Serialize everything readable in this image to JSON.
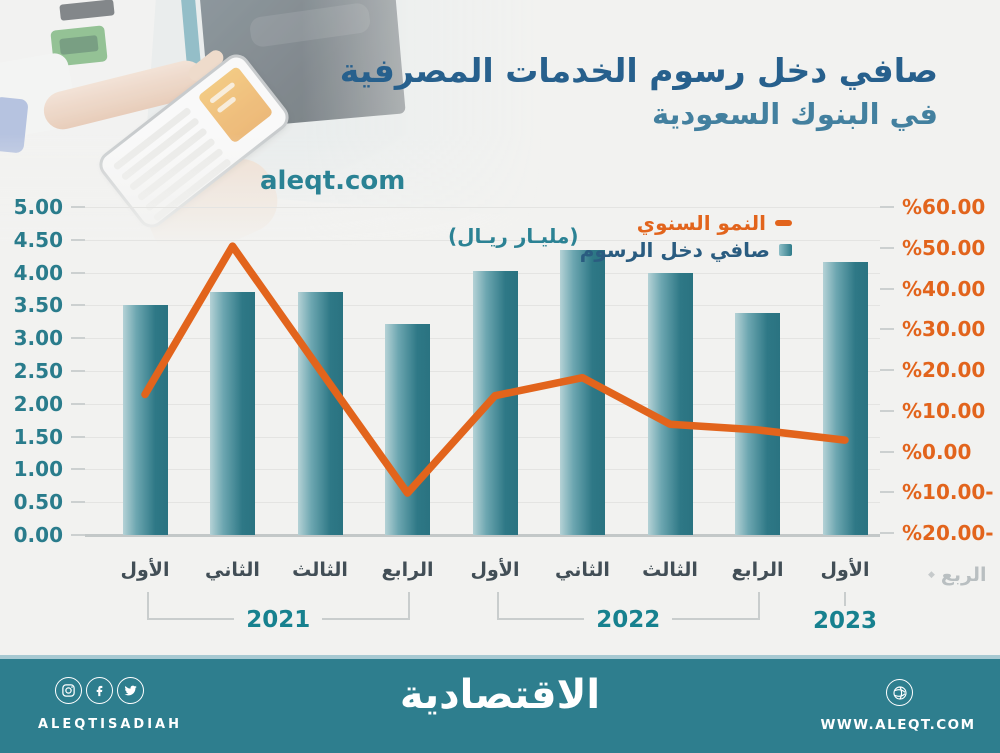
{
  "header": {
    "title_line1": "صافي دخل رسوم الخدمات المصرفية",
    "title_line2": "في البنوك السعودية",
    "website": "aleqt.com"
  },
  "chart_data": {
    "type": "bar",
    "title": "صافي دخل رسوم الخدمات المصرفية في البنوك السعودية",
    "unit_label": "(مليـار ريـال)",
    "x_axis_title": "الربع",
    "grid": true,
    "legend_position": "top-right",
    "categories": [
      "الأول",
      "الثاني",
      "الثالث",
      "الرابع",
      "الأول",
      "الثاني",
      "الثالث",
      "الرابع",
      "الأول"
    ],
    "year_groups": [
      {
        "label": "2021",
        "from": 0,
        "to": 3
      },
      {
        "label": "2022",
        "from": 4,
        "to": 7
      },
      {
        "label": "2023",
        "from": 8,
        "to": 8
      }
    ],
    "series": [
      {
        "name": "صافي دخل الرسوم",
        "type": "bar",
        "axis": "left",
        "color": "#2f7b89",
        "values": [
          3.5,
          3.7,
          3.7,
          3.22,
          4.02,
          4.35,
          3.99,
          3.38,
          4.16
        ]
      },
      {
        "name": "النمو السنوي",
        "type": "line",
        "axis": "right",
        "color": "#e2641c",
        "values": [
          14.0,
          50.4,
          20.0,
          -10.2,
          13.7,
          18.1,
          6.7,
          5.3,
          2.8
        ]
      }
    ],
    "left_axis": {
      "min": 0,
      "max": 5,
      "labels": [
        "5.00",
        "4.50",
        "4.00",
        "3.50",
        "3.00",
        "2.50",
        "2.00",
        "1.50",
        "1.00",
        "0.50",
        "0.00"
      ]
    },
    "right_axis": {
      "min": -20,
      "max": 60,
      "labels": [
        "%60.00",
        "%50.00",
        "%40.00",
        "%30.00",
        "%20.00",
        "%10.00",
        "%0.00",
        "%10.00-",
        "%20.00-"
      ]
    }
  },
  "legend": [
    {
      "label": "النمو السنوي",
      "type": "line",
      "color": "#e2641c"
    },
    {
      "label": "صافي دخل الرسوم",
      "type": "bar",
      "color": "#2f7b89"
    }
  ],
  "footer": {
    "social_handle": "ALEQTISADIAH",
    "logo": "الاقتصادية",
    "website": "WWW.ALEQT.COM",
    "icons": [
      "instagram-icon",
      "facebook-icon",
      "twitter-icon",
      "globe-icon"
    ],
    "background": "#2e7e8e"
  },
  "colors": {
    "accent_orange": "#e2641c",
    "bar_teal_dark": "#2a7381",
    "bar_teal_light": "#9dc4cb",
    "title_dark": "#27608d",
    "title_light": "#43809f",
    "axis_teal": "#2a7c8c",
    "year_teal": "#17818f",
    "background": "#f2f2f0"
  }
}
